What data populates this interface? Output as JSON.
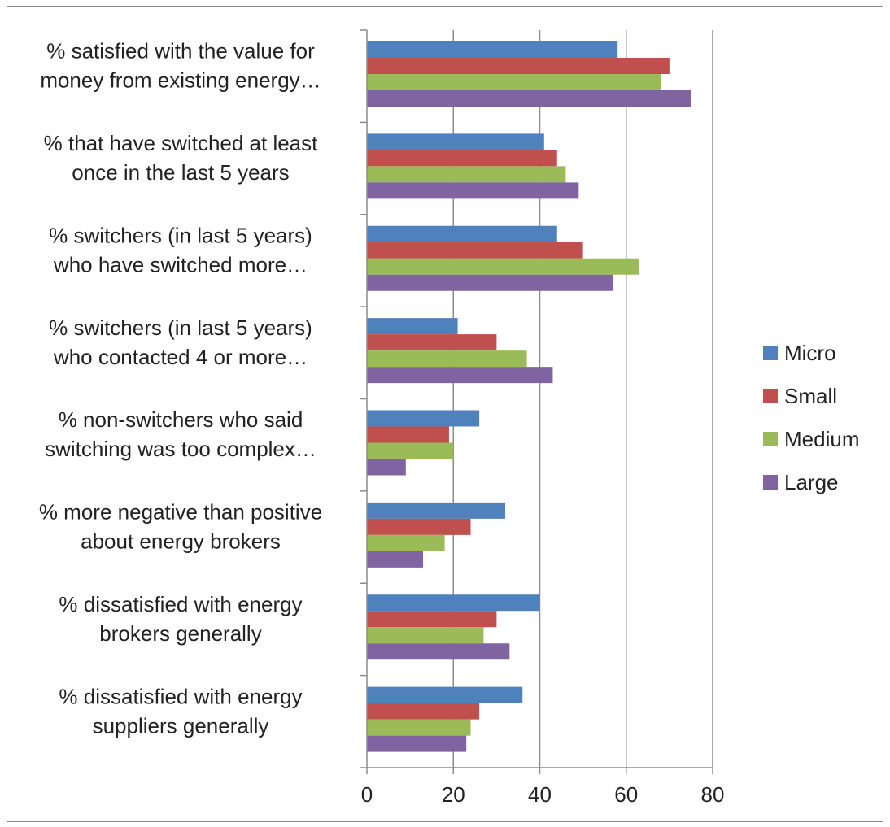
{
  "chart_data": {
    "type": "bar",
    "orientation": "horizontal",
    "categories": [
      [
        "% satisfied with the value for",
        "money from  existing energy…"
      ],
      [
        "% that have switched at least",
        "once in the last 5 years"
      ],
      [
        "% switchers (in last 5 years)",
        "who have switched more…"
      ],
      [
        "% switchers (in last 5 years)",
        "who contacted 4 or more…"
      ],
      [
        "% non-switchers who said",
        "switching was too complex…"
      ],
      [
        "% more negative than positive",
        "about energy brokers"
      ],
      [
        "% dissatisfied with energy",
        "brokers generally"
      ],
      [
        "% dissatisfied with energy",
        "suppliers generally"
      ]
    ],
    "series": [
      {
        "name": "Micro",
        "color": "#4F81BD",
        "values": [
          58,
          41,
          44,
          21,
          26,
          32,
          40,
          36
        ]
      },
      {
        "name": "Small",
        "color": "#C0504D",
        "values": [
          70,
          44,
          50,
          30,
          19,
          24,
          30,
          26
        ]
      },
      {
        "name": "Medium",
        "color": "#9BBB59",
        "values": [
          68,
          46,
          63,
          37,
          20,
          18,
          27,
          24
        ]
      },
      {
        "name": "Large",
        "color": "#8064A2",
        "values": [
          75,
          49,
          57,
          43,
          9,
          13,
          33,
          23
        ]
      }
    ],
    "xticks": [
      "0",
      "20",
      "40",
      "60",
      "80"
    ],
    "xlim": [
      0,
      80
    ],
    "grid": true,
    "legend_position": "right",
    "title": "",
    "xlabel": "",
    "ylabel": ""
  }
}
